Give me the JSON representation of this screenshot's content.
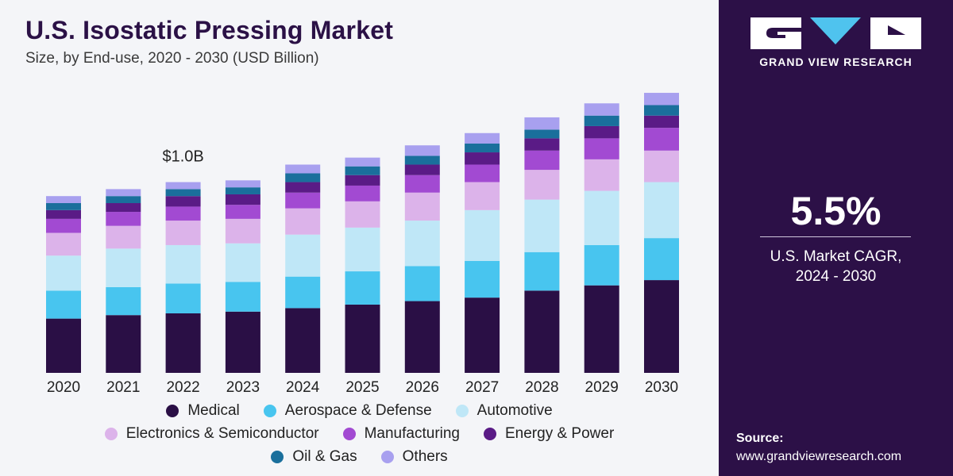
{
  "header": {
    "title": "U.S. Isostatic Pressing Market",
    "subtitle": "Size, by End-use, 2020 - 2030 (USD Billion)"
  },
  "chart_data": {
    "type": "bar",
    "stacked": true,
    "categories": [
      "2020",
      "2021",
      "2022",
      "2023",
      "2024",
      "2025",
      "2026",
      "2027",
      "2028",
      "2029",
      "2030"
    ],
    "series": [
      {
        "name": "Medical",
        "color": "#2a0f45",
        "values": [
          0.31,
          0.33,
          0.34,
          0.35,
          0.37,
          0.39,
          0.41,
          0.43,
          0.47,
          0.5,
          0.53
        ]
      },
      {
        "name": "Aerospace & Defense",
        "color": "#48c5ef",
        "values": [
          0.16,
          0.16,
          0.17,
          0.17,
          0.18,
          0.19,
          0.2,
          0.21,
          0.22,
          0.23,
          0.24
        ]
      },
      {
        "name": "Automotive",
        "color": "#bfe7f7",
        "values": [
          0.2,
          0.22,
          0.22,
          0.22,
          0.24,
          0.25,
          0.26,
          0.29,
          0.3,
          0.31,
          0.32
        ]
      },
      {
        "name": "Electronics & Semiconductor",
        "color": "#dcb3ea",
        "values": [
          0.13,
          0.13,
          0.14,
          0.14,
          0.15,
          0.15,
          0.16,
          0.16,
          0.17,
          0.18,
          0.18
        ]
      },
      {
        "name": "Manufacturing",
        "color": "#a24ad2",
        "values": [
          0.08,
          0.08,
          0.08,
          0.08,
          0.09,
          0.09,
          0.1,
          0.1,
          0.11,
          0.12,
          0.13
        ]
      },
      {
        "name": "Energy & Power",
        "color": "#5a1b86",
        "values": [
          0.05,
          0.05,
          0.06,
          0.06,
          0.06,
          0.06,
          0.06,
          0.07,
          0.07,
          0.07,
          0.07
        ]
      },
      {
        "name": "Oil & Gas",
        "color": "#1a6f9c",
        "values": [
          0.04,
          0.04,
          0.04,
          0.04,
          0.05,
          0.05,
          0.05,
          0.05,
          0.05,
          0.06,
          0.06
        ]
      },
      {
        "name": "Others",
        "color": "#a8a0ef",
        "values": [
          0.04,
          0.04,
          0.04,
          0.04,
          0.05,
          0.05,
          0.06,
          0.06,
          0.07,
          0.07,
          0.07
        ]
      }
    ],
    "annotations": [
      {
        "category": "2022",
        "text": "$1.0B"
      }
    ],
    "ylim": [
      0,
      1.65
    ],
    "grid": false,
    "legend": "bottom"
  },
  "panel": {
    "brand": "GRAND VIEW RESEARCH",
    "cagr_value": "5.5%",
    "cagr_label_line1": "U.S. Market CAGR,",
    "cagr_label_line2": "2024 - 2030",
    "source_label": "Source:",
    "source_url": "www.grandviewresearch.com",
    "colors": {
      "background": "#2c1047",
      "text": "#ffffff"
    }
  }
}
